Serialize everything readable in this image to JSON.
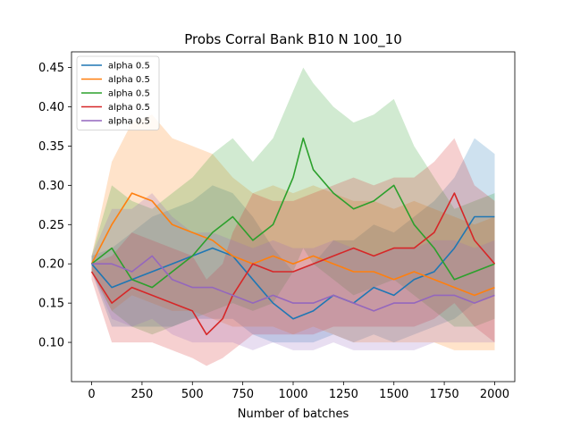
{
  "chart_data": {
    "type": "line",
    "title": "Probs Corral Bank B10 N 100_10",
    "xlabel": "Number of batches",
    "ylabel": "",
    "xlim": [
      -100,
      2100
    ],
    "ylim": [
      0.05,
      0.47
    ],
    "xticks": [
      0,
      250,
      500,
      750,
      1000,
      1250,
      1500,
      1750,
      2000
    ],
    "yticks": [
      0.1,
      0.15,
      0.2,
      0.25,
      0.3,
      0.35,
      0.4,
      0.45
    ],
    "grid": false,
    "legend_position": "top-left",
    "series": [
      {
        "name": "alpha 0.5",
        "color": "#1f77b4",
        "x": [
          0,
          100,
          200,
          300,
          400,
          500,
          600,
          700,
          800,
          900,
          1000,
          1100,
          1200,
          1300,
          1400,
          1500,
          1600,
          1700,
          1800,
          1900,
          2000
        ],
        "mean": [
          0.2,
          0.17,
          0.18,
          0.19,
          0.2,
          0.21,
          0.22,
          0.21,
          0.18,
          0.15,
          0.13,
          0.14,
          0.16,
          0.15,
          0.17,
          0.16,
          0.18,
          0.19,
          0.22,
          0.26,
          0.26
        ],
        "lower": [
          0.19,
          0.12,
          0.12,
          0.12,
          0.12,
          0.13,
          0.13,
          0.13,
          0.11,
          0.1,
          0.1,
          0.1,
          0.11,
          0.1,
          0.11,
          0.1,
          0.11,
          0.12,
          0.13,
          0.15,
          0.16
        ],
        "upper": [
          0.21,
          0.22,
          0.24,
          0.26,
          0.27,
          0.28,
          0.3,
          0.29,
          0.26,
          0.22,
          0.19,
          0.2,
          0.23,
          0.23,
          0.25,
          0.24,
          0.26,
          0.28,
          0.31,
          0.36,
          0.34
        ]
      },
      {
        "name": "alpha 0.5",
        "color": "#ff7f0e",
        "x": [
          0,
          100,
          200,
          300,
          400,
          500,
          600,
          700,
          800,
          900,
          1000,
          1100,
          1200,
          1300,
          1400,
          1500,
          1600,
          1700,
          1800,
          1900,
          2000
        ],
        "mean": [
          0.2,
          0.25,
          0.29,
          0.28,
          0.25,
          0.24,
          0.23,
          0.21,
          0.2,
          0.21,
          0.2,
          0.21,
          0.2,
          0.19,
          0.19,
          0.18,
          0.19,
          0.18,
          0.17,
          0.16,
          0.17
        ],
        "lower": [
          0.19,
          0.14,
          0.16,
          0.15,
          0.14,
          0.14,
          0.13,
          0.12,
          0.12,
          0.12,
          0.11,
          0.12,
          0.11,
          0.1,
          0.1,
          0.1,
          0.1,
          0.1,
          0.09,
          0.09,
          0.09
        ],
        "upper": [
          0.21,
          0.33,
          0.38,
          0.39,
          0.36,
          0.35,
          0.34,
          0.31,
          0.29,
          0.3,
          0.29,
          0.3,
          0.29,
          0.28,
          0.28,
          0.27,
          0.28,
          0.27,
          0.26,
          0.25,
          0.26
        ]
      },
      {
        "name": "alpha 0.5",
        "color": "#2ca02c",
        "x": [
          0,
          100,
          200,
          300,
          400,
          500,
          600,
          700,
          800,
          900,
          1000,
          1050,
          1100,
          1200,
          1300,
          1400,
          1500,
          1600,
          1700,
          1800,
          1900,
          2000
        ],
        "mean": [
          0.2,
          0.22,
          0.18,
          0.17,
          0.19,
          0.21,
          0.24,
          0.26,
          0.23,
          0.25,
          0.31,
          0.36,
          0.32,
          0.29,
          0.27,
          0.28,
          0.3,
          0.25,
          0.22,
          0.18,
          0.19,
          0.2
        ],
        "lower": [
          0.19,
          0.14,
          0.12,
          0.11,
          0.12,
          0.13,
          0.14,
          0.15,
          0.14,
          0.15,
          0.19,
          0.22,
          0.2,
          0.18,
          0.16,
          0.17,
          0.18,
          0.16,
          0.14,
          0.12,
          0.12,
          0.13
        ],
        "upper": [
          0.21,
          0.3,
          0.28,
          0.27,
          0.29,
          0.31,
          0.34,
          0.36,
          0.33,
          0.36,
          0.42,
          0.45,
          0.43,
          0.4,
          0.38,
          0.39,
          0.41,
          0.35,
          0.31,
          0.27,
          0.28,
          0.29
        ]
      },
      {
        "name": "alpha 0.5",
        "color": "#d62728",
        "x": [
          0,
          100,
          200,
          300,
          400,
          500,
          570,
          650,
          700,
          800,
          900,
          1000,
          1100,
          1200,
          1300,
          1400,
          1500,
          1600,
          1700,
          1800,
          1900,
          2000
        ],
        "mean": [
          0.19,
          0.15,
          0.17,
          0.16,
          0.15,
          0.14,
          0.11,
          0.13,
          0.16,
          0.2,
          0.19,
          0.19,
          0.2,
          0.21,
          0.22,
          0.21,
          0.22,
          0.22,
          0.24,
          0.29,
          0.23,
          0.2
        ],
        "lower": [
          0.18,
          0.1,
          0.1,
          0.1,
          0.09,
          0.08,
          0.07,
          0.08,
          0.09,
          0.11,
          0.11,
          0.11,
          0.11,
          0.12,
          0.12,
          0.12,
          0.12,
          0.12,
          0.13,
          0.15,
          0.12,
          0.1
        ],
        "upper": [
          0.2,
          0.21,
          0.24,
          0.23,
          0.22,
          0.21,
          0.18,
          0.2,
          0.24,
          0.29,
          0.28,
          0.28,
          0.29,
          0.3,
          0.31,
          0.3,
          0.31,
          0.31,
          0.33,
          0.36,
          0.3,
          0.28
        ]
      },
      {
        "name": "alpha 0.5",
        "color": "#9467bd",
        "x": [
          0,
          100,
          200,
          300,
          400,
          500,
          600,
          700,
          800,
          900,
          1000,
          1100,
          1200,
          1300,
          1400,
          1500,
          1600,
          1700,
          1800,
          1900,
          2000
        ],
        "mean": [
          0.2,
          0.2,
          0.19,
          0.21,
          0.18,
          0.17,
          0.17,
          0.16,
          0.15,
          0.16,
          0.15,
          0.15,
          0.16,
          0.15,
          0.14,
          0.15,
          0.15,
          0.16,
          0.16,
          0.15,
          0.16
        ],
        "lower": [
          0.19,
          0.13,
          0.12,
          0.13,
          0.11,
          0.1,
          0.1,
          0.1,
          0.09,
          0.1,
          0.09,
          0.09,
          0.1,
          0.09,
          0.09,
          0.09,
          0.09,
          0.1,
          0.1,
          0.1,
          0.1
        ],
        "upper": [
          0.21,
          0.27,
          0.27,
          0.29,
          0.26,
          0.24,
          0.24,
          0.23,
          0.22,
          0.23,
          0.22,
          0.22,
          0.23,
          0.22,
          0.21,
          0.22,
          0.22,
          0.23,
          0.23,
          0.22,
          0.23
        ]
      }
    ]
  }
}
